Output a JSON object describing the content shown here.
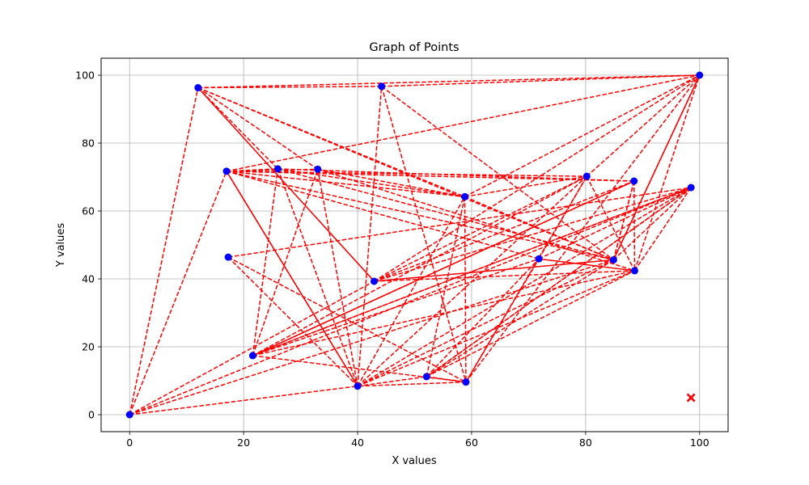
{
  "chart_data": {
    "type": "scatter",
    "title": "Graph of Points",
    "xlabel": "X values",
    "ylabel": "Y values",
    "xlim": [
      -5,
      105
    ],
    "ylim": [
      -5,
      105
    ],
    "x_ticks": [
      0,
      20,
      40,
      60,
      80,
      100
    ],
    "y_ticks": [
      0,
      20,
      40,
      60,
      80,
      100
    ],
    "grid": true,
    "legend": "none",
    "colors": {
      "points": "#0000ff",
      "lines": "#ff0000",
      "marker_x": "#ff0000"
    },
    "points": [
      {
        "x": 0,
        "y": 0
      },
      {
        "x": 12,
        "y": 96.3
      },
      {
        "x": 17,
        "y": 71.7
      },
      {
        "x": 17.3,
        "y": 46.4
      },
      {
        "x": 21.6,
        "y": 17.4
      },
      {
        "x": 26,
        "y": 72.4
      },
      {
        "x": 33,
        "y": 72.3
      },
      {
        "x": 40,
        "y": 8.4
      },
      {
        "x": 42.9,
        "y": 39.3
      },
      {
        "x": 44.2,
        "y": 96.7
      },
      {
        "x": 52.1,
        "y": 11.2
      },
      {
        "x": 58.8,
        "y": 64.2
      },
      {
        "x": 59.0,
        "y": 9.6
      },
      {
        "x": 71.8,
        "y": 45.9
      },
      {
        "x": 80.2,
        "y": 70.2
      },
      {
        "x": 84.9,
        "y": 45.6
      },
      {
        "x": 88.5,
        "y": 68.8
      },
      {
        "x": 88.6,
        "y": 42.4
      },
      {
        "x": 98.5,
        "y": 66.9
      },
      {
        "x": 100,
        "y": 100
      }
    ],
    "x_marker": {
      "x": 98.5,
      "y": 5
    },
    "dashed_edges": [
      [
        0,
        1
      ],
      [
        0,
        2
      ],
      [
        0,
        7
      ],
      [
        0,
        8
      ],
      [
        0,
        15
      ],
      [
        0,
        18
      ],
      [
        1,
        9
      ],
      [
        1,
        19
      ],
      [
        1,
        5
      ],
      [
        1,
        11
      ],
      [
        1,
        15
      ],
      [
        1,
        6
      ],
      [
        2,
        19
      ],
      [
        2,
        14
      ],
      [
        2,
        16
      ],
      [
        2,
        15
      ],
      [
        2,
        11
      ],
      [
        2,
        13
      ],
      [
        2,
        7
      ],
      [
        2,
        5
      ],
      [
        2,
        6
      ],
      [
        3,
        18
      ],
      [
        3,
        12
      ],
      [
        3,
        7
      ],
      [
        4,
        14
      ],
      [
        4,
        16
      ],
      [
        4,
        18
      ],
      [
        4,
        13
      ],
      [
        4,
        17
      ],
      [
        4,
        6
      ],
      [
        4,
        12
      ],
      [
        4,
        5
      ],
      [
        5,
        11
      ],
      [
        5,
        15
      ],
      [
        5,
        7
      ],
      [
        5,
        16
      ],
      [
        6,
        11
      ],
      [
        6,
        17
      ],
      [
        6,
        7
      ],
      [
        7,
        9
      ],
      [
        7,
        11
      ],
      [
        7,
        14
      ],
      [
        7,
        15
      ],
      [
        7,
        18
      ],
      [
        7,
        17
      ],
      [
        7,
        10
      ],
      [
        8,
        14
      ],
      [
        8,
        19
      ],
      [
        8,
        16
      ],
      [
        8,
        17
      ],
      [
        8,
        18
      ],
      [
        9,
        12
      ],
      [
        9,
        15
      ],
      [
        9,
        19
      ],
      [
        10,
        11
      ],
      [
        10,
        17
      ],
      [
        10,
        12
      ],
      [
        10,
        18
      ],
      [
        10,
        13
      ],
      [
        11,
        12
      ],
      [
        11,
        14
      ],
      [
        11,
        15
      ],
      [
        11,
        19
      ],
      [
        12,
        13
      ],
      [
        12,
        19
      ],
      [
        12,
        7
      ],
      [
        13,
        14
      ],
      [
        13,
        18
      ],
      [
        14,
        19
      ],
      [
        14,
        12
      ],
      [
        14,
        17
      ],
      [
        15,
        19
      ],
      [
        15,
        18
      ],
      [
        15,
        16
      ],
      [
        15,
        10
      ],
      [
        16,
        17
      ],
      [
        16,
        15
      ],
      [
        17,
        18
      ],
      [
        17,
        19
      ],
      [
        18,
        4
      ],
      [
        18,
        10
      ]
    ],
    "solid_edges": [
      [
        1,
        8
      ],
      [
        2,
        7
      ],
      [
        4,
        16
      ],
      [
        8,
        15
      ],
      [
        13,
        17
      ],
      [
        15,
        19
      ]
    ]
  }
}
